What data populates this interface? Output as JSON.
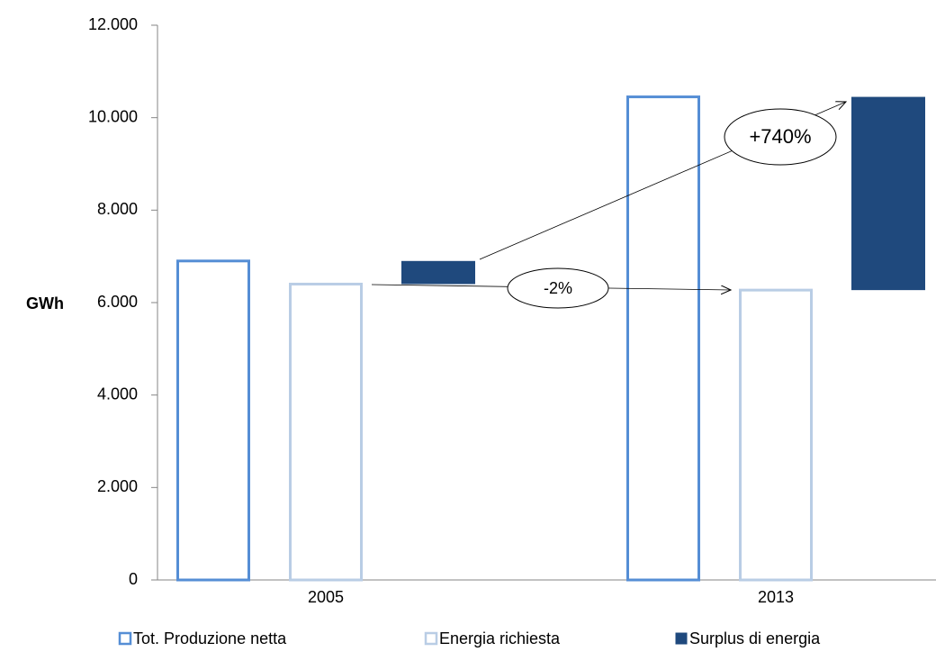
{
  "chart_data": {
    "type": "bar",
    "y_label": "GWh",
    "categories": [
      "2005",
      "2013"
    ],
    "series": [
      {
        "name": "Tot. Produzione netta",
        "color": "#558ed5",
        "values": [
          6900,
          10450
        ]
      },
      {
        "name": "Energia richiesta",
        "color": "#b9cde5",
        "values": [
          6400,
          6270
        ]
      },
      {
        "name": "Surplus di energia",
        "color": "#1f497d",
        "values": [
          500,
          4180
        ]
      }
    ],
    "annotations": [
      "+740%",
      "-2%"
    ],
    "ylim": [
      0,
      12000
    ],
    "yticks": [
      0,
      {
        "value": 2000,
        "label": "2.000"
      },
      {
        "value": 4000,
        "label": "4.000"
      },
      {
        "value": 6000,
        "label": "6.000"
      },
      {
        "value": 8000,
        "label": "8.000"
      },
      {
        "value": 10000,
        "label": "10.000"
      },
      {
        "value": 12000,
        "label": "12.000"
      }
    ],
    "legend": "bottom"
  }
}
